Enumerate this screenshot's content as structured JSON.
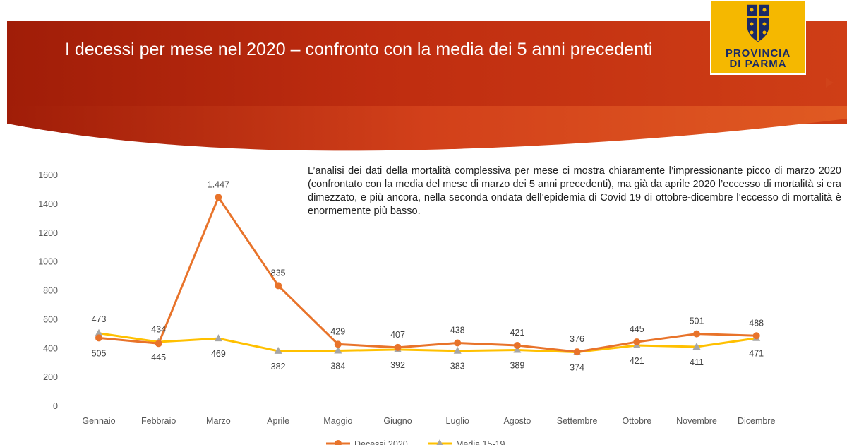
{
  "slide": {
    "title": "I decessi per mese nel 2020 – confronto con la media dei 5 anni precedenti",
    "logo_text_line1": "PROVINCIA",
    "logo_text_line2": "DI PARMA",
    "analysis": "L’analisi dei dati della mortalità complessiva per mese ci mostra chiaramente l’impressionante picco di marzo 2020 (confrontato con la media del mese di marzo dei 5 anni precedenti), ma già da aprile 2020 l’eccesso di mortalità si era dimezzato, e più ancora, nella seconda ondata dell’epidemia di Covid 19 di ottobre-dicembre l’eccesso di mortalità è enormemente più basso.",
    "colors": {
      "banner": "#b52610",
      "logo_bg": "#f5b800",
      "logo_text": "#1a2a66"
    }
  },
  "chart_data": {
    "type": "line",
    "categories": [
      "Gennaio",
      "Febbraio",
      "Marzo",
      "Aprile",
      "Maggio",
      "Giugno",
      "Luglio",
      "Agosto",
      "Settembre",
      "Ottobre",
      "Novembre",
      "Dicembre"
    ],
    "series": [
      {
        "name": "Decessi 2020",
        "color": "#e8732a",
        "marker": "circle",
        "values": [
          473,
          434,
          1447,
          835,
          429,
          407,
          438,
          421,
          376,
          445,
          501,
          488
        ],
        "labels": [
          "473",
          "434",
          "1.447",
          "835",
          "429",
          "407",
          "438",
          "421",
          "376",
          "445",
          "501",
          "488"
        ]
      },
      {
        "name": "Media 15-19",
        "color": "#ffc000",
        "marker": "triangle",
        "values": [
          505,
          445,
          469,
          382,
          384,
          392,
          383,
          389,
          374,
          421,
          411,
          471
        ],
        "labels": [
          "505",
          "445",
          "469",
          "382",
          "384",
          "392",
          "383",
          "389",
          "374",
          "421",
          "411",
          "471"
        ]
      }
    ],
    "y_ticks": [
      "0",
      "200",
      "400",
      "600",
      "800",
      "1000",
      "1200",
      "1400",
      "1600"
    ],
    "ylim": [
      0,
      1600
    ],
    "grid": false,
    "legend": "bottom"
  }
}
